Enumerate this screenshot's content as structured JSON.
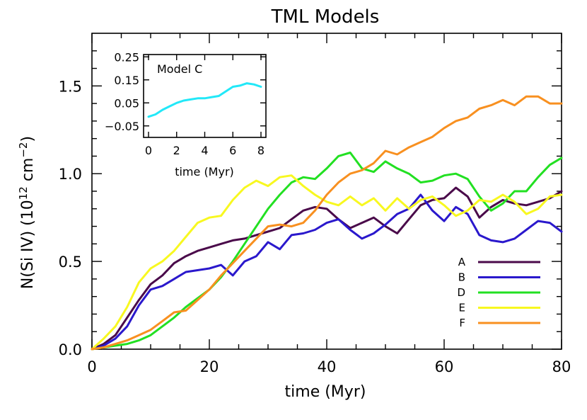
{
  "chart_data": {
    "type": "line",
    "title": "TML Models",
    "xlabel": "time (Myr)",
    "ylabel": "N(Si IV) (10",
    "ylabel_exp": "12",
    "ylabel_unit": " cm",
    "ylabel_unit_exp": "−2",
    "ylabel_close": ")",
    "xlim": [
      0,
      80
    ],
    "ylim": [
      0,
      1.8
    ],
    "x_ticks": [
      0,
      20,
      40,
      60,
      80
    ],
    "x_tick_labels": [
      "0",
      "20",
      "40",
      "60",
      "80"
    ],
    "y_ticks": [
      0,
      0.5,
      1.0,
      1.5
    ],
    "y_tick_labels": [
      "0.0",
      "0.5",
      "1.0",
      "1.5"
    ],
    "legend": "bottom-right",
    "series": [
      {
        "name": "A",
        "color": "#4a0a4a",
        "x": [
          0,
          2,
          4,
          6,
          8,
          10,
          12,
          14,
          16,
          18,
          20,
          22,
          24,
          26,
          28,
          30,
          32,
          34,
          36,
          38,
          40,
          42,
          44,
          46,
          48,
          50,
          52,
          54,
          56,
          58,
          60,
          62,
          64,
          66,
          68,
          70,
          72,
          74,
          76,
          78,
          80
        ],
        "y": [
          0.0,
          0.03,
          0.08,
          0.18,
          0.28,
          0.37,
          0.42,
          0.49,
          0.53,
          0.56,
          0.58,
          0.6,
          0.62,
          0.63,
          0.65,
          0.67,
          0.69,
          0.74,
          0.79,
          0.81,
          0.8,
          0.74,
          0.69,
          0.72,
          0.75,
          0.7,
          0.66,
          0.74,
          0.82,
          0.85,
          0.86,
          0.92,
          0.87,
          0.75,
          0.81,
          0.85,
          0.83,
          0.82,
          0.84,
          0.86,
          0.9
        ]
      },
      {
        "name": "B",
        "color": "#2a18cc",
        "x": [
          0,
          2,
          4,
          6,
          8,
          10,
          12,
          14,
          16,
          18,
          20,
          22,
          24,
          26,
          28,
          30,
          32,
          34,
          36,
          38,
          40,
          42,
          44,
          46,
          48,
          50,
          52,
          54,
          56,
          58,
          60,
          62,
          64,
          66,
          68,
          70,
          72,
          74,
          76,
          78,
          80
        ],
        "y": [
          0.0,
          0.02,
          0.06,
          0.13,
          0.25,
          0.34,
          0.36,
          0.4,
          0.44,
          0.45,
          0.46,
          0.48,
          0.42,
          0.5,
          0.53,
          0.61,
          0.57,
          0.65,
          0.66,
          0.68,
          0.72,
          0.74,
          0.68,
          0.63,
          0.66,
          0.71,
          0.77,
          0.8,
          0.88,
          0.79,
          0.73,
          0.81,
          0.77,
          0.65,
          0.62,
          0.61,
          0.63,
          0.68,
          0.73,
          0.72,
          0.67
        ]
      },
      {
        "name": "D",
        "color": "#22e022",
        "x": [
          0,
          2,
          4,
          6,
          8,
          10,
          12,
          14,
          16,
          18,
          20,
          22,
          24,
          26,
          28,
          30,
          32,
          34,
          36,
          38,
          40,
          42,
          44,
          46,
          48,
          50,
          52,
          54,
          56,
          58,
          60,
          62,
          64,
          66,
          68,
          70,
          72,
          74,
          76,
          78,
          80
        ],
        "y": [
          0.0,
          0.01,
          0.02,
          0.03,
          0.05,
          0.08,
          0.13,
          0.18,
          0.24,
          0.29,
          0.34,
          0.41,
          0.5,
          0.6,
          0.7,
          0.8,
          0.88,
          0.95,
          0.98,
          0.97,
          1.03,
          1.1,
          1.12,
          1.03,
          1.01,
          1.07,
          1.03,
          1.0,
          0.95,
          0.96,
          0.99,
          1.0,
          0.97,
          0.87,
          0.79,
          0.83,
          0.9,
          0.9,
          0.98,
          1.05,
          1.09
        ]
      },
      {
        "name": "E",
        "color": "#f8f820",
        "x": [
          0,
          2,
          4,
          6,
          8,
          10,
          12,
          14,
          16,
          18,
          20,
          22,
          24,
          26,
          28,
          30,
          32,
          34,
          36,
          38,
          40,
          42,
          44,
          46,
          48,
          50,
          52,
          54,
          56,
          58,
          60,
          62,
          64,
          66,
          68,
          70,
          72,
          74,
          76,
          78,
          80
        ],
        "y": [
          0.0,
          0.06,
          0.13,
          0.24,
          0.38,
          0.46,
          0.5,
          0.56,
          0.64,
          0.72,
          0.75,
          0.76,
          0.85,
          0.92,
          0.96,
          0.93,
          0.98,
          0.99,
          0.93,
          0.88,
          0.84,
          0.82,
          0.87,
          0.82,
          0.86,
          0.79,
          0.86,
          0.8,
          0.85,
          0.87,
          0.82,
          0.76,
          0.79,
          0.85,
          0.84,
          0.88,
          0.84,
          0.77,
          0.8,
          0.87,
          0.88
        ]
      },
      {
        "name": "F",
        "color": "#f89020",
        "x": [
          0,
          2,
          4,
          6,
          8,
          10,
          12,
          14,
          16,
          18,
          20,
          22,
          24,
          26,
          28,
          30,
          32,
          34,
          36,
          38,
          40,
          42,
          44,
          46,
          48,
          50,
          52,
          54,
          56,
          58,
          60,
          62,
          64,
          66,
          68,
          70,
          72,
          74,
          76,
          78,
          80
        ],
        "y": [
          0.0,
          0.01,
          0.03,
          0.05,
          0.08,
          0.11,
          0.16,
          0.21,
          0.22,
          0.28,
          0.34,
          0.42,
          0.49,
          0.56,
          0.63,
          0.7,
          0.71,
          0.7,
          0.72,
          0.79,
          0.88,
          0.95,
          1.0,
          1.02,
          1.06,
          1.13,
          1.11,
          1.15,
          1.18,
          1.21,
          1.26,
          1.3,
          1.32,
          1.37,
          1.39,
          1.42,
          1.39,
          1.44,
          1.44,
          1.4,
          1.4
        ]
      }
    ],
    "inset": {
      "title": "Model C",
      "xlabel": "time (Myr)",
      "xlim": [
        0,
        8
      ],
      "ylim": [
        -0.1,
        0.26
      ],
      "x_ticks": [
        0,
        2,
        4,
        6,
        8
      ],
      "x_tick_labels": [
        "0",
        "2",
        "4",
        "6",
        "8"
      ],
      "y_ticks": [
        -0.05,
        0.05,
        0.15,
        0.25
      ],
      "y_tick_labels": [
        "−0.05",
        "0.05",
        "0.15",
        "0.25"
      ],
      "series": [
        {
          "name": "C",
          "color": "#22e8f8",
          "x": [
            0,
            0.5,
            1,
            1.5,
            2,
            2.5,
            3,
            3.5,
            4,
            4.5,
            5,
            5.5,
            6,
            6.5,
            7,
            7.5,
            8
          ],
          "y": [
            -0.01,
            0.0,
            0.02,
            0.035,
            0.05,
            0.06,
            0.065,
            0.07,
            0.07,
            0.075,
            0.08,
            0.1,
            0.12,
            0.125,
            0.135,
            0.13,
            0.12
          ]
        }
      ]
    }
  }
}
